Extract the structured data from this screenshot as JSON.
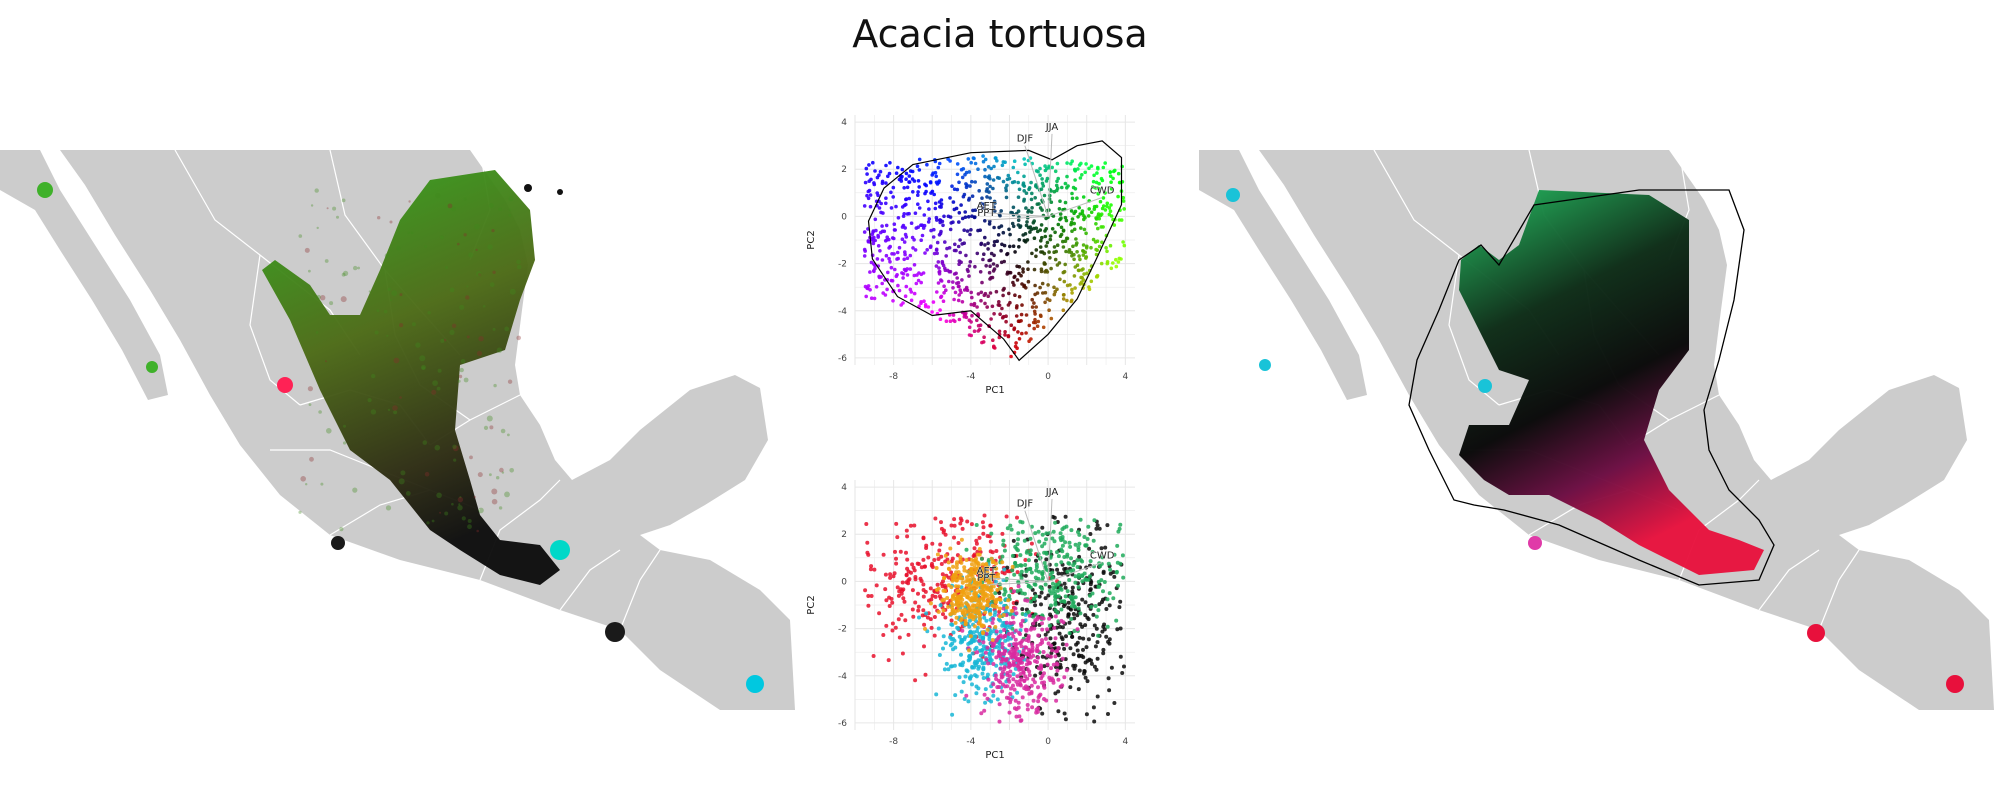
{
  "title": "Acacia tortuosa",
  "colors": {
    "land": "#cccccc",
    "border": "#ffffff",
    "grid": "#e6e6e6",
    "hull": "#000000",
    "arrow": "#bbbbbb",
    "arrow_label": "#222222"
  },
  "maps": {
    "left": {
      "layer": "environment-rgb-raster",
      "blob_colors": [
        "#3fb12a",
        "#1a1a1a",
        "#ff2255",
        "#00d8c8"
      ]
    },
    "right": {
      "layer": "climate-prediction-rgb",
      "hull_drawn": true,
      "blob_colors": [
        "#19c3d8",
        "#e03aa8",
        "#e8103c"
      ]
    }
  },
  "chart_data": [
    {
      "type": "scatter",
      "panel": "pca-top",
      "title": "",
      "xlabel": "PC1",
      "ylabel": "PC2",
      "xlim": [
        -10,
        4.5
      ],
      "ylim": [
        -6.3,
        4.3
      ],
      "xticks": [
        -8,
        -4,
        0,
        4
      ],
      "yticks": [
        -6,
        -4,
        -2,
        0,
        2,
        4
      ],
      "grid": true,
      "coloring": "rgb by position",
      "hull": true,
      "loadings": [
        {
          "label": "JJA",
          "x": 0.2,
          "y": 3.5
        },
        {
          "label": "DJF",
          "x": -1.2,
          "y": 3.0
        },
        {
          "label": "CWD",
          "x": 2.8,
          "y": 0.8
        },
        {
          "label": "AET",
          "x": -3.2,
          "y": 0.15
        },
        {
          "label": "PPT",
          "x": -3.2,
          "y": -0.15
        }
      ]
    },
    {
      "type": "scatter",
      "panel": "pca-bottom",
      "title": "",
      "xlabel": "PC1",
      "ylabel": "PC2",
      "xlim": [
        -10,
        4.5
      ],
      "ylim": [
        -6.3,
        4.3
      ],
      "xticks": [
        -8,
        -4,
        0,
        4
      ],
      "yticks": [
        -6,
        -4,
        -2,
        0,
        2,
        4
      ],
      "grid": true,
      "coloring": "points colored by cluster",
      "series": [
        {
          "color": "#e8102c",
          "cx": -5.5,
          "cy": 0.2,
          "sx": 2.2,
          "sy": 1.5
        },
        {
          "color": "#0a0a0a",
          "cx": 1.2,
          "cy": -1.5,
          "sx": 1.6,
          "sy": 2.0
        },
        {
          "color": "#1faa5a",
          "cx": 0.5,
          "cy": 0.5,
          "sx": 1.8,
          "sy": 1.2
        },
        {
          "color": "#18b6d6",
          "cx": -3.5,
          "cy": -2.5,
          "sx": 1.0,
          "sy": 1.2
        },
        {
          "color": "#d82aa0",
          "cx": -1.5,
          "cy": -3.5,
          "sx": 1.0,
          "sy": 1.2
        },
        {
          "color": "#f0a010",
          "cx": -4.0,
          "cy": -0.5,
          "sx": 0.8,
          "sy": 0.8
        }
      ],
      "loadings": [
        {
          "label": "JJA",
          "x": 0.2,
          "y": 3.5
        },
        {
          "label": "DJF",
          "x": -1.2,
          "y": 3.0
        },
        {
          "label": "CWD",
          "x": 2.8,
          "y": 0.8
        },
        {
          "label": "AET",
          "x": -3.2,
          "y": 0.15
        },
        {
          "label": "PPT",
          "x": -3.2,
          "y": -0.15
        }
      ]
    }
  ]
}
